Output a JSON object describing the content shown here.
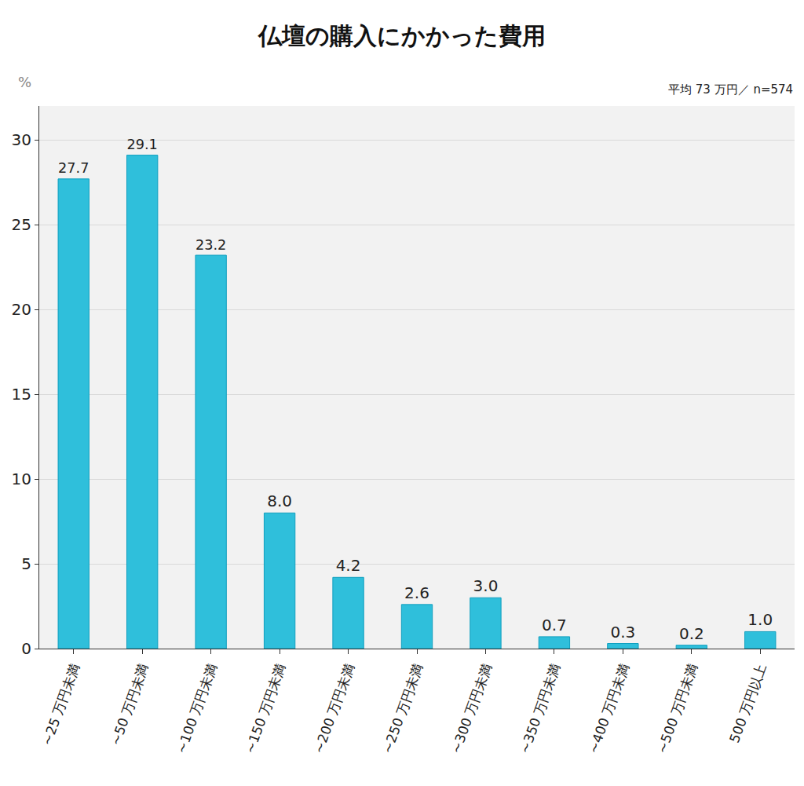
{
  "chart_data": {
    "type": "bar",
    "title": "仏壇の購入にかかった費用",
    "ylabel": "%",
    "annotations": [
      "平均 73 万円／ n=574"
    ],
    "categories": [
      "~25 万円未満",
      "~50 万円未満",
      "~100 万円未満",
      "~150 万円未満",
      "~200 万円未満",
      "~250 万円未満",
      "~300 万円未満",
      "~350 万円未満",
      "~400 万円未満",
      "~500 万円未満",
      "500 万円以上"
    ],
    "values": [
      27.7,
      29.1,
      23.2,
      8.0,
      4.2,
      2.6,
      3.0,
      0.7,
      0.3,
      0.2,
      1.0
    ],
    "value_labels": [
      "27.7",
      "29.1",
      "23.2",
      "8.0",
      "4.2",
      "2.6",
      "3.0",
      "0.7",
      "0.3",
      "0.2",
      "1.0"
    ],
    "data_labels": true,
    "color": "#2fbfdb",
    "ylim": [
      0,
      32
    ],
    "yticks": [
      0,
      5,
      10,
      15,
      20,
      25,
      30
    ],
    "grid": true
  }
}
